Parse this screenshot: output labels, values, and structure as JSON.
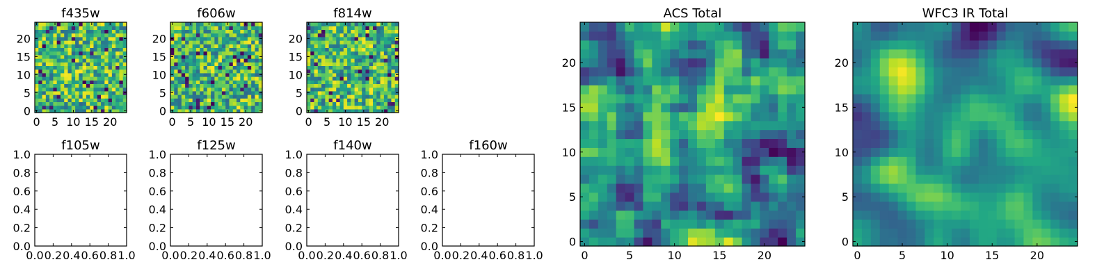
{
  "chart_data": [
    {
      "type": "heatmap",
      "title": "f435w",
      "xticks": [
        0,
        5,
        10,
        15,
        20
      ],
      "yticks": [
        0,
        5,
        10,
        15,
        20
      ],
      "xlim": [
        -0.5,
        24.5
      ],
      "ylim": [
        -0.5,
        24.5
      ],
      "grid_size": 25,
      "colormap": "viridis",
      "cells_seed": 11,
      "smoothing": 0
    },
    {
      "type": "heatmap",
      "title": "f606w",
      "xticks": [
        0,
        5,
        10,
        15,
        20
      ],
      "yticks": [
        0,
        5,
        10,
        15,
        20
      ],
      "xlim": [
        -0.5,
        24.5
      ],
      "ylim": [
        -0.5,
        24.5
      ],
      "grid_size": 25,
      "colormap": "viridis",
      "cells_seed": 23,
      "smoothing": 0
    },
    {
      "type": "heatmap",
      "title": "f814w",
      "xticks": [
        0,
        5,
        10,
        15,
        20
      ],
      "yticks": [
        0,
        5,
        10,
        15,
        20
      ],
      "xlim": [
        -0.5,
        24.5
      ],
      "ylim": [
        -0.5,
        24.5
      ],
      "grid_size": 25,
      "colormap": "viridis",
      "cells_seed": 37,
      "smoothing": 0
    },
    {
      "type": "line",
      "title": "f105w",
      "xticks": [
        "0.0",
        "0.2",
        "0.4",
        "0.6",
        "0.8",
        "1.0"
      ],
      "yticks": [
        "0.0",
        "0.2",
        "0.4",
        "0.6",
        "0.8",
        "1.0"
      ],
      "xlim": [
        0,
        1
      ],
      "ylim": [
        0,
        1
      ],
      "series": []
    },
    {
      "type": "line",
      "title": "f125w",
      "xticks": [
        "0.0",
        "0.2",
        "0.4",
        "0.6",
        "0.8",
        "1.0"
      ],
      "yticks": [
        "0.0",
        "0.2",
        "0.4",
        "0.6",
        "0.8",
        "1.0"
      ],
      "xlim": [
        0,
        1
      ],
      "ylim": [
        0,
        1
      ],
      "series": []
    },
    {
      "type": "line",
      "title": "f140w",
      "xticks": [
        "0.0",
        "0.2",
        "0.4",
        "0.6",
        "0.8",
        "1.0"
      ],
      "yticks": [
        "0.0",
        "0.2",
        "0.4",
        "0.6",
        "0.8",
        "1.0"
      ],
      "xlim": [
        0,
        1
      ],
      "ylim": [
        0,
        1
      ],
      "series": []
    },
    {
      "type": "line",
      "title": "f160w",
      "xticks": [
        "0.0",
        "0.2",
        "0.4",
        "0.6",
        "0.8",
        "1.0"
      ],
      "yticks": [
        "0.0",
        "0.2",
        "0.4",
        "0.6",
        "0.8",
        "1.0"
      ],
      "xlim": [
        0,
        1
      ],
      "ylim": [
        0,
        1
      ],
      "series": []
    },
    {
      "type": "heatmap",
      "title": "ACS Total",
      "xticks": [
        0,
        5,
        10,
        15,
        20
      ],
      "yticks": [
        0,
        5,
        10,
        15,
        20
      ],
      "xlim": [
        -0.5,
        24.5
      ],
      "ylim": [
        -0.5,
        24.5
      ],
      "grid_size": 25,
      "colormap": "viridis",
      "cells_seed": 51,
      "smoothing": 1
    },
    {
      "type": "heatmap",
      "title": "WFC3 IR Total",
      "xticks": [
        0,
        5,
        10,
        15,
        20
      ],
      "yticks": [
        0,
        5,
        10,
        15,
        20
      ],
      "xlim": [
        -0.5,
        24.5
      ],
      "ylim": [
        -0.5,
        24.5
      ],
      "grid_size": 25,
      "colormap": "viridis",
      "cells_seed": 77,
      "smoothing": 3
    }
  ]
}
